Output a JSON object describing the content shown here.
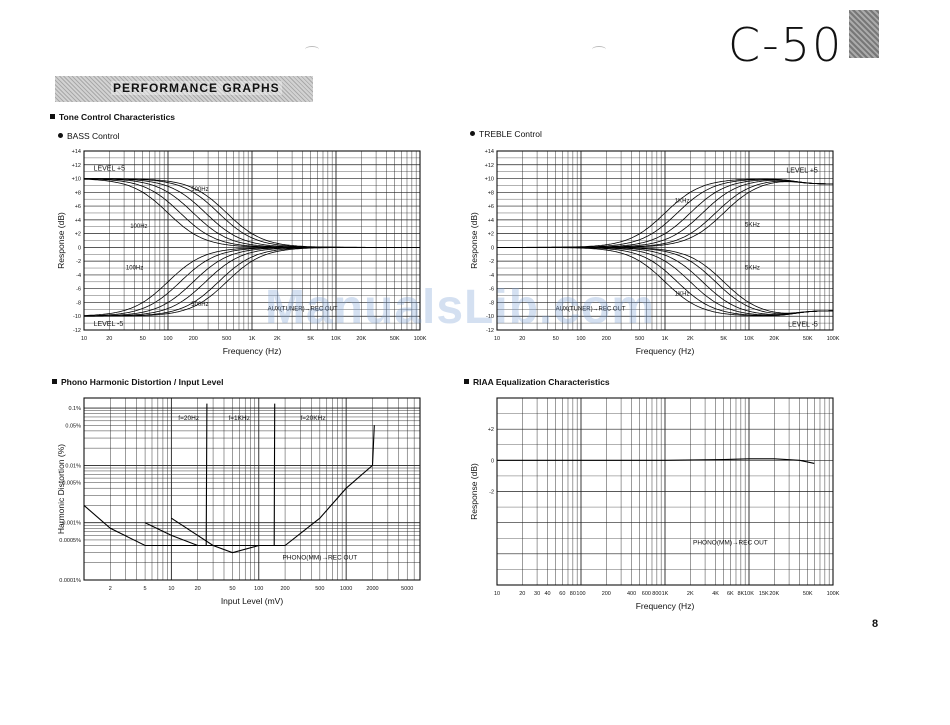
{
  "header": {
    "model": "C-50",
    "banner": "PERFORMANCE GRAPHS",
    "page_number": "8"
  },
  "sections": {
    "tone": "Tone Control Characteristics",
    "bass": "BASS Control",
    "treble": "TREBLE Control",
    "phono": "Phono Harmonic Distortion / Input Level",
    "riaa": "RIAA Equalization Characteristics"
  },
  "watermark": "ManualsLib.com",
  "chart_data": [
    {
      "id": "bass",
      "type": "line",
      "xlabel": "Frequency (Hz)",
      "ylabel": "Response (dB)",
      "xscale": "log",
      "xlim": [
        10,
        100000
      ],
      "ylim": [
        -12,
        14
      ],
      "x_ticks": [
        "10",
        "20",
        "50",
        "100",
        "200",
        "500",
        "1K",
        "2K",
        "5K",
        "10K",
        "20K",
        "50K",
        "100K"
      ],
      "y_ticks": [
        "+14",
        "+12",
        "+10",
        "+8",
        "+6",
        "+4",
        "+2",
        "0",
        "-2",
        "-4",
        "-6",
        "-8",
        "-10",
        "-12"
      ],
      "annotations": [
        "LEVEL +5",
        "LEVEL -5",
        "500Hz",
        "100Hz",
        "100Hz",
        "500Hz",
        "AUX(TUNER)→REC OUT"
      ],
      "family": {
        "boost_db": 10,
        "cut_db": -10,
        "turnovers_hz": [
          100,
          140,
          200,
          280,
          400,
          500
        ],
        "converge_hz": 1500
      }
    },
    {
      "id": "treble",
      "type": "line",
      "xlabel": "Frequency (Hz)",
      "ylabel": "Response (dB)",
      "xscale": "log",
      "xlim": [
        10,
        100000
      ],
      "ylim": [
        -12,
        14
      ],
      "x_ticks": [
        "10",
        "20",
        "50",
        "100",
        "200",
        "500",
        "1K",
        "2K",
        "5K",
        "10K",
        "20K",
        "50K",
        "100K"
      ],
      "y_ticks": [
        "+14",
        "+12",
        "+10",
        "+8",
        "+6",
        "+4",
        "+2",
        "0",
        "-2",
        "-4",
        "-6",
        "-8",
        "-10",
        "-12"
      ],
      "annotations": [
        "LEVEL +5",
        "LEVEL -5",
        "1KHz",
        "5KHz",
        "5KHz",
        "1KHz",
        "AUX(TUNER)→REC OUT"
      ],
      "family": {
        "boost_db": 10,
        "cut_db": -10,
        "turnovers_hz": [
          1000,
          1400,
          2000,
          2800,
          4000,
          5000
        ],
        "converge_hz": 100
      }
    },
    {
      "id": "phono",
      "type": "line",
      "xlabel": "Input Level (mV)",
      "ylabel": "Harmonic Distortion (%)",
      "xscale": "log",
      "yscale": "log",
      "xlim": [
        1,
        7000
      ],
      "ylim": [
        0.0001,
        0.15
      ],
      "x_ticks": [
        "2",
        "5",
        "10",
        "20",
        "50",
        "100",
        "200",
        "500",
        "1000",
        "2000",
        "5000"
      ],
      "y_ticks": [
        "0.1%",
        "0.05%",
        "0.01%",
        "0.005%",
        "0.001%",
        "0.0005%",
        "0.0001%"
      ],
      "annotations": [
        "f=20Hz",
        "f=1KHz",
        "f=20KHz",
        "PHONO(MM)→REC OUT"
      ],
      "series": [
        {
          "x": [
            1,
            2,
            5,
            10,
            20,
            25,
            25.5
          ],
          "y": [
            0.002,
            0.0008,
            0.0004,
            0.0004,
            0.0004,
            0.0004,
            0.12
          ]
        },
        {
          "x": [
            5,
            10,
            20,
            50,
            100,
            150,
            152
          ],
          "y": [
            0.001,
            0.0006,
            0.0004,
            0.0004,
            0.0004,
            0.0004,
            0.12
          ]
        },
        {
          "x": [
            10,
            20,
            30,
            50,
            100,
            200,
            500,
            1000,
            2000,
            2100
          ],
          "y": [
            0.0012,
            0.0006,
            0.0004,
            0.0003,
            0.0004,
            0.0004,
            0.0012,
            0.004,
            0.01,
            0.05
          ]
        }
      ]
    },
    {
      "id": "riaa",
      "type": "line",
      "xlabel": "Frequency (Hz)",
      "ylabel": "Response (dB)",
      "xscale": "log",
      "xlim": [
        10,
        100000
      ],
      "ylim": [
        -8,
        4
      ],
      "x_ticks": [
        "10",
        "20",
        "30",
        "40",
        "60",
        "80",
        "100",
        "200",
        "400",
        "600",
        "800",
        "1K",
        "2K",
        "4K",
        "6K",
        "8K",
        "10K",
        "15K",
        "20K",
        "50K",
        "100K"
      ],
      "y_ticks": [
        "+2",
        "0",
        "-2"
      ],
      "annotations": [
        "PHONO(MM)→REC OUT"
      ],
      "series": [
        {
          "x": [
            10,
            20,
            50,
            100,
            1000,
            5000,
            10000,
            20000,
            40000,
            60000
          ],
          "y": [
            0,
            0,
            0,
            0,
            0,
            0.05,
            0.1,
            0.1,
            0,
            -0.2
          ]
        }
      ]
    }
  ]
}
